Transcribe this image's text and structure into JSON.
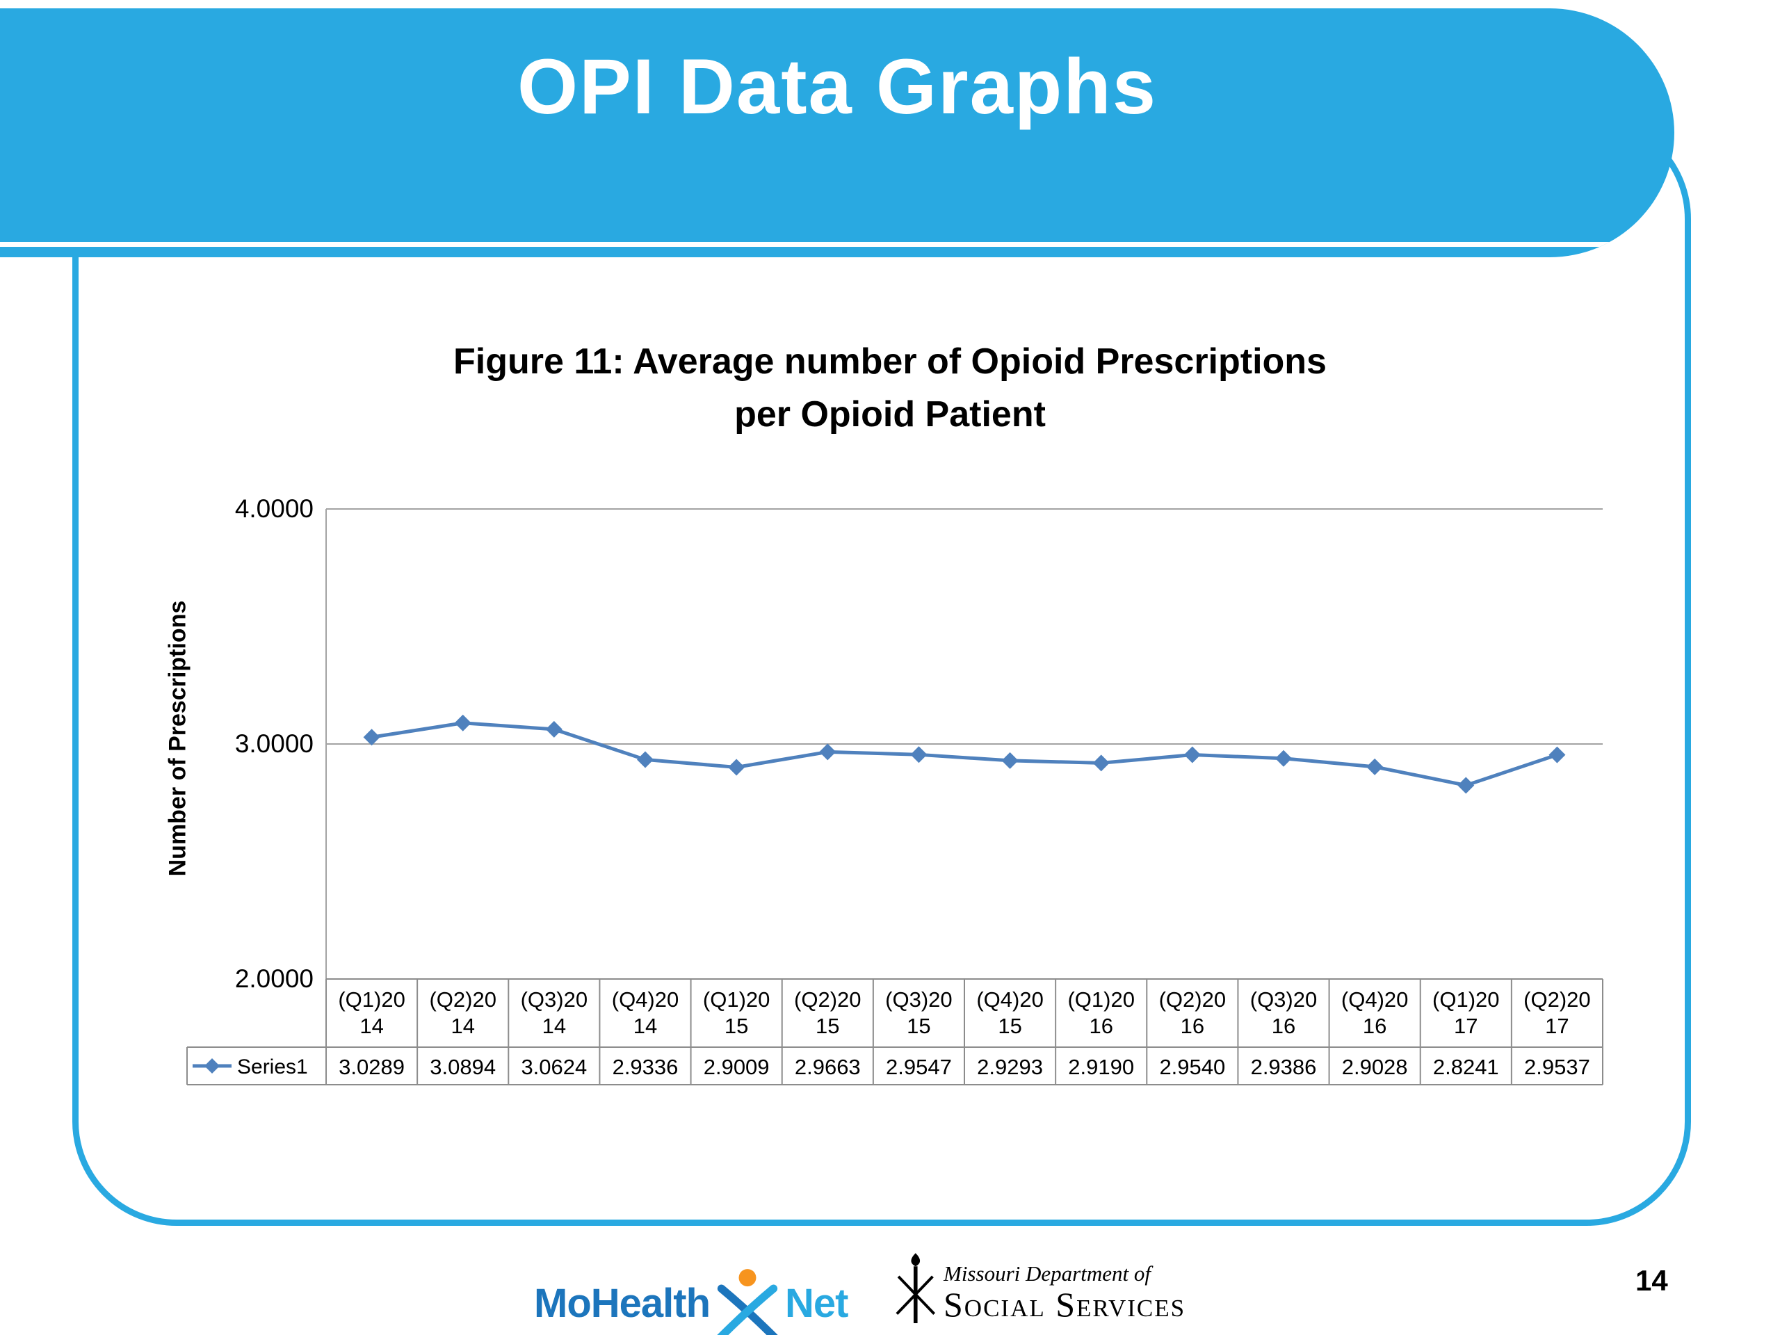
{
  "header": {
    "title": "OPI Data Graphs",
    "banner_color": "#29A9E1"
  },
  "chart_data": {
    "type": "line",
    "title": "Figure 11: Average number of Opioid Prescriptions per Opioid Patient",
    "title_lines": [
      "Figure 11: Average number of Opioid Prescriptions",
      "per Opioid Patient"
    ],
    "ylabel": "Number of Prescriptions",
    "xlabel": "",
    "ylim": [
      2.0,
      4.0
    ],
    "yticks": [
      4.0,
      3.0,
      2.0
    ],
    "grid": true,
    "data_table": true,
    "legend_position": "data-table-left",
    "categories": [
      "(Q1)2014",
      "(Q2)2014",
      "(Q3)2014",
      "(Q4)2014",
      "(Q1)2015",
      "(Q2)2015",
      "(Q3)2015",
      "(Q4)2015",
      "(Q1)2016",
      "(Q2)2016",
      "(Q3)2016",
      "(Q4)2016",
      "(Q1)2017",
      "(Q2)2017"
    ],
    "series": [
      {
        "name": "Series1",
        "color": "#4F81BD",
        "marker": "diamond",
        "values": [
          3.0289,
          3.0894,
          3.0624,
          2.9336,
          2.9009,
          2.9663,
          2.9547,
          2.9293,
          2.919,
          2.954,
          2.9386,
          2.9028,
          2.8241,
          2.9537
        ]
      }
    ]
  },
  "footer": {
    "mohealthnet": {
      "part1": "MoHealth",
      "part2": "Net",
      "accent_orange": "#F7941E"
    },
    "dss": {
      "line1": "Missouri Department of",
      "line2": "Social Services"
    },
    "page_number": "14"
  }
}
